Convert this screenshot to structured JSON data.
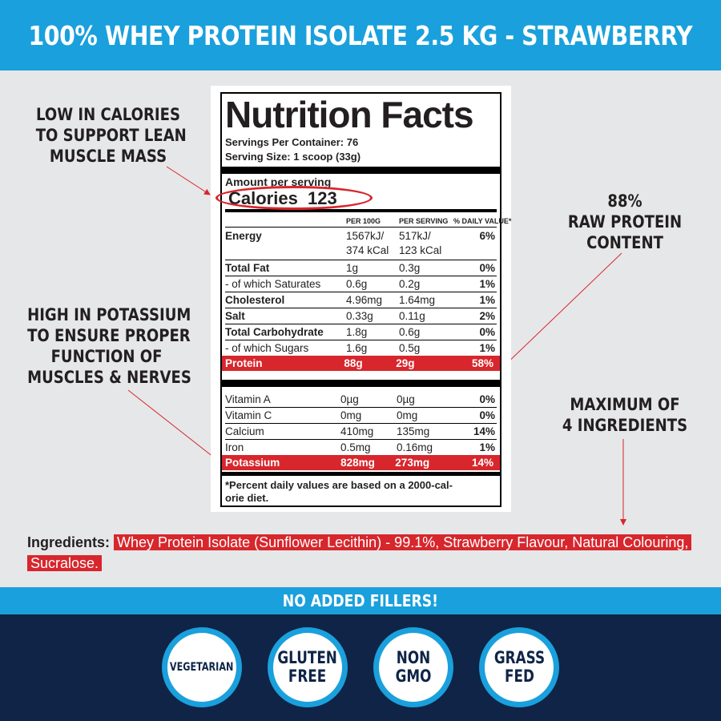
{
  "header": {
    "title": "100% WHEY PROTEIN ISOLATE 2.5 KG - STRAWBERRY"
  },
  "callouts": {
    "calories": [
      "LOW IN CALORIES",
      "TO SUPPORT LEAN",
      "MUSCLE MASS"
    ],
    "protein": [
      "88%",
      "RAW PROTEIN",
      "CONTENT"
    ],
    "potassium": [
      "HIGH IN POTASSIUM",
      "TO ENSURE PROPER",
      "FUNCTION OF",
      "MUSCLES & NERVES"
    ],
    "ingredients": [
      "MAXIMUM OF",
      "4 INGREDIENTS"
    ]
  },
  "label": {
    "title": "Nutrition Facts",
    "servings_per_container": "Servings Per Container: 76",
    "serving_size": "Serving Size: 1 scoop (33g)",
    "amount_per_serving": "Amount per serving",
    "calories": "Calories  123",
    "columns": [
      "PER 100G",
      "PER SERVING",
      "% DAILY VALUE*"
    ],
    "rows": [
      {
        "name": "Energy",
        "per100": "1567kJ/\n374 kCal",
        "serving": "517kJ/\n123 kCal",
        "dv": "6%"
      },
      {
        "name": "Total Fat",
        "per100": "1g",
        "serving": "0.3g",
        "dv": "0%"
      },
      {
        "name": "- of which Saturates",
        "per100": "0.6g",
        "serving": "0.2g",
        "dv": "1%"
      },
      {
        "name": "Cholesterol",
        "per100": "4.96mg",
        "serving": "1.64mg",
        "dv": "1%"
      },
      {
        "name": "Salt",
        "per100": "0.33g",
        "serving": "0.11g",
        "dv": "2%"
      },
      {
        "name": "Total Carbohydrate",
        "per100": "1.8g",
        "serving": "0.6g",
        "dv": "0%"
      },
      {
        "name": "- of which Sugars",
        "per100": "1.6g",
        "serving": "0.5g",
        "dv": "1%"
      },
      {
        "name": "Protein",
        "per100": "88g",
        "serving": "29g",
        "dv": "58%"
      }
    ],
    "vitamins": [
      {
        "name": "Vitamin A",
        "per100": "0µg",
        "serving": "0µg",
        "dv": "0%"
      },
      {
        "name": "Vitamin C",
        "per100": "0mg",
        "serving": "0mg",
        "dv": "0%"
      },
      {
        "name": "Calcium",
        "per100": "410mg",
        "serving": "135mg",
        "dv": "14%"
      },
      {
        "name": "Iron",
        "per100": "0.5mg",
        "serving": "0.16mg",
        "dv": "1%"
      },
      {
        "name": "Potassium",
        "per100": "828mg",
        "serving": "273mg",
        "dv": "14%"
      }
    ],
    "footnote": "*Percent daily values are based on a 2000-cal-\norie diet."
  },
  "ingredients": {
    "label": "Ingredients:",
    "text": "Whey Protein Isolate (Sunflower Lecithin) - 99.1%, Strawberry Flavour, Natural Colouring, Sucralose."
  },
  "banner": {
    "text": "NO ADDED FILLERS!"
  },
  "badges": [
    "VEGETARIAN",
    "GLUTEN\nFREE",
    "NON\nGMO",
    "GRASS\nFED"
  ],
  "colors": {
    "accent_blue": "#1aa0dc",
    "navy": "#0f2447",
    "highlight_red": "#d7262c",
    "background": "#e6e7e8"
  }
}
